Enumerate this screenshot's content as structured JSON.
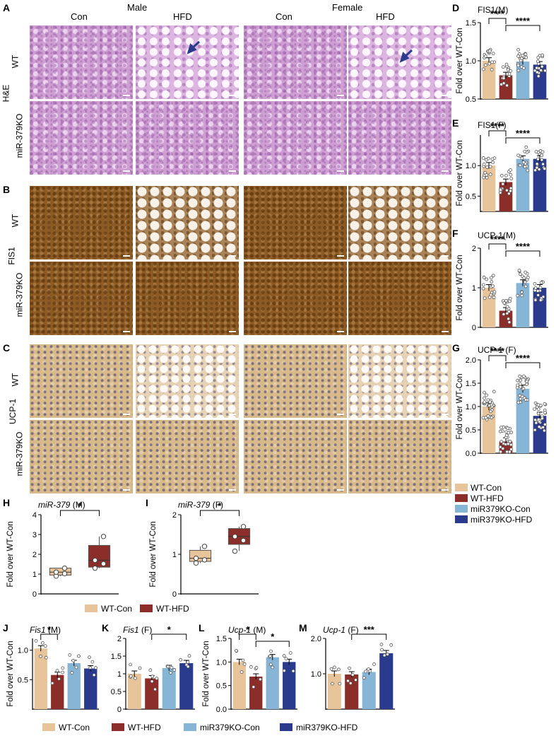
{
  "panels": {
    "A": "A",
    "B": "B",
    "C": "C",
    "D": "D",
    "E": "E",
    "F": "F",
    "G": "G",
    "H": "H",
    "I": "I",
    "J": "J",
    "K": "K",
    "L": "L",
    "M": "M"
  },
  "histology": {
    "sex_male": "Male",
    "sex_female": "Female",
    "diet_con": "Con",
    "diet_hfd": "HFD",
    "row_wt": "WT",
    "row_ko": "miR-379KO",
    "stain_he": "H&E",
    "stain_fis1": "FIS1",
    "stain_ucp1": "UCP-1"
  },
  "colors": {
    "wt_con": "#e8c49a",
    "wt_hfd": "#8b2e2a",
    "ko_con": "#87b5d6",
    "ko_hfd": "#2a3a8c",
    "he_stain": "#cf9fd3",
    "fis1_stain": "#8c5a22",
    "ucp1_stain": "#d8b98a"
  },
  "legend_right": [
    "WT-Con",
    "WT-HFD",
    "miR379KO-Con",
    "miR379KO-HFD"
  ],
  "legend_mid": [
    "WT-Con",
    "WT-HFD"
  ],
  "legend_bottom": [
    "WT-Con",
    "WT-HFD",
    "miR379KO-Con",
    "miR379KO-HFD"
  ],
  "chart_data": [
    {
      "panel": "D",
      "type": "bar",
      "title": "FIS1(M)",
      "ylabel": "Fold over WT-Con",
      "categories": [
        "WT-Con",
        "WT-HFD",
        "miR379KO-Con",
        "miR379KO-HFD"
      ],
      "values": [
        1.0,
        0.81,
        0.99,
        0.95
      ],
      "ylim": [
        0.5,
        1.5
      ],
      "yticks": [
        "0.5",
        "1.0",
        "1.5"
      ],
      "significance": [
        {
          "pair": [
            0,
            1
          ],
          "label": "****"
        },
        {
          "pair": [
            1,
            3
          ],
          "label": "****"
        }
      ]
    },
    {
      "panel": "E",
      "type": "bar",
      "title": "FIS1(F)",
      "ylabel": "Fold over WT-Con",
      "categories": [
        "WT-Con",
        "WT-HFD",
        "miR379KO-Con",
        "miR379KO-HFD"
      ],
      "values": [
        1.0,
        0.73,
        1.11,
        1.11
      ],
      "ylim": [
        0.25,
        1.5
      ],
      "yticks": [
        "0.5",
        "1.0"
      ],
      "significance": [
        {
          "pair": [
            0,
            1
          ],
          "label": "****"
        },
        {
          "pair": [
            1,
            3
          ],
          "label": "****"
        }
      ]
    },
    {
      "panel": "F",
      "type": "bar",
      "title": "UCP-1(M)",
      "ylabel": "Fold over WT-Con",
      "categories": [
        "WT-Con",
        "WT-HFD",
        "miR379KO-Con",
        "miR379KO-HFD"
      ],
      "values": [
        1.0,
        0.42,
        1.12,
        1.0
      ],
      "ylim": [
        0,
        2.0
      ],
      "yticks": [
        "0",
        "1",
        "2"
      ],
      "significance": [
        {
          "pair": [
            0,
            1
          ],
          "label": "****"
        },
        {
          "pair": [
            1,
            3
          ],
          "label": "****"
        }
      ]
    },
    {
      "panel": "G",
      "type": "bar",
      "title": "UCP-1 (F)",
      "ylabel": "Fold over WT-Con",
      "categories": [
        "WT-Con",
        "WT-HFD",
        "miR379KO-Con",
        "miR379KO-HFD"
      ],
      "values": [
        1.0,
        0.25,
        1.38,
        0.8
      ],
      "ylim": [
        0,
        2.0
      ],
      "yticks": [
        "0.0",
        "0.5",
        "1.0",
        "1.5",
        "2.0"
      ],
      "significance": [
        {
          "pair": [
            0,
            1
          ],
          "label": "****"
        },
        {
          "pair": [
            1,
            3
          ],
          "label": "****"
        }
      ]
    },
    {
      "panel": "H",
      "type": "box",
      "title": "miR-379",
      "title_suffix": " (M)",
      "ylabel": "Fold over WT-Con",
      "categories": [
        "WT-Con",
        "WT-HFD"
      ],
      "boxes": [
        {
          "min": 0.9,
          "q1": 0.95,
          "median": 1.1,
          "q3": 1.3,
          "max": 1.3
        },
        {
          "min": 1.3,
          "q1": 1.35,
          "median": 1.7,
          "q3": 2.45,
          "max": 2.9
        }
      ],
      "ylim": [
        0,
        4
      ],
      "yticks": [
        "0",
        "1",
        "2",
        "3",
        "4"
      ],
      "significance": [
        {
          "pair": [
            0,
            1
          ],
          "label": "*"
        }
      ]
    },
    {
      "panel": "I",
      "type": "box",
      "title": "miR-379",
      "title_suffix": " (F)",
      "ylabel": "Fold over WT-Con",
      "categories": [
        "WT-Con",
        "WT-HFD"
      ],
      "boxes": [
        {
          "min": 0.78,
          "q1": 0.82,
          "median": 0.9,
          "q3": 1.1,
          "max": 1.2
        },
        {
          "min": 1.08,
          "q1": 1.25,
          "median": 1.45,
          "q3": 1.65,
          "max": 1.7
        }
      ],
      "ylim": [
        0,
        2
      ],
      "yticks": [
        "0",
        "1",
        "2"
      ],
      "significance": [
        {
          "pair": [
            0,
            1
          ],
          "label": "*"
        }
      ]
    },
    {
      "panel": "J",
      "type": "bar",
      "title": "Fis1",
      "title_suffix": " (M)",
      "ylabel": "Fold over WT-Con",
      "categories": [
        "WT-Con",
        "WT-HFD",
        "miR379KO-Con",
        "miR379KO-HFD"
      ],
      "values": [
        1.03,
        0.58,
        0.78,
        0.69
      ],
      "ylim": [
        0,
        1.2
      ],
      "yticks": [
        "0.5",
        "1.0"
      ],
      "significance": [
        {
          "pair": [
            0,
            1
          ],
          "label": "*"
        }
      ]
    },
    {
      "panel": "K",
      "type": "bar",
      "title": "Fis1",
      "title_suffix": " (F)",
      "ylabel": "",
      "categories": [
        "WT-Con",
        "WT-HFD",
        "miR379KO-Con",
        "miR379KO-HFD"
      ],
      "values": [
        1.0,
        0.87,
        1.16,
        1.3
      ],
      "ylim": [
        0,
        2.0
      ],
      "yticks": [
        "0",
        "0.5",
        "1",
        "1.5",
        "2"
      ],
      "significance": [
        {
          "pair": [
            1,
            3
          ],
          "label": "*"
        }
      ]
    },
    {
      "panel": "L",
      "type": "bar",
      "title": "Ucp-1",
      "title_suffix": " (M)",
      "ylabel": "Fold over WT-Con",
      "categories": [
        "WT-Con",
        "WT-HFD",
        "miR379KO-Con",
        "miR379KO-HFD"
      ],
      "values": [
        1.0,
        0.69,
        1.1,
        1.0
      ],
      "ylim": [
        0,
        1.5
      ],
      "yticks": [
        "0.0",
        "0.5",
        "1.0",
        "1.5"
      ],
      "significance": [
        {
          "pair": [
            0,
            1
          ],
          "label": "*"
        },
        {
          "pair": [
            1,
            3
          ],
          "label": "*"
        }
      ]
    },
    {
      "panel": "M",
      "type": "bar",
      "title": "Ucp-1",
      "title_suffix": " (F)",
      "ylabel": "",
      "categories": [
        "WT-Con",
        "WT-HFD",
        "miR379KO-Con",
        "miR379KO-HFD"
      ],
      "values": [
        1.0,
        0.98,
        1.05,
        1.58
      ],
      "ylim": [
        0,
        2.0
      ],
      "yticks": [
        "1.0",
        "2.0"
      ],
      "significance": [
        {
          "pair": [
            1,
            3
          ],
          "label": "***"
        }
      ]
    }
  ]
}
